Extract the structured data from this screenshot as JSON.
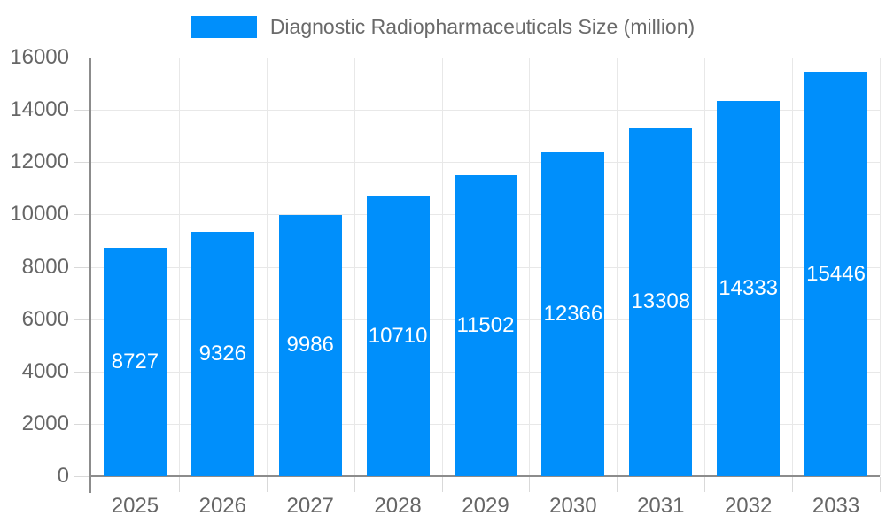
{
  "chart_data": {
    "type": "bar",
    "title": "Diagnostic Radiopharmaceuticals Size (million)",
    "categories": [
      "2025",
      "2026",
      "2027",
      "2028",
      "2029",
      "2030",
      "2031",
      "2032",
      "2033"
    ],
    "values": [
      8727,
      9326,
      9986,
      10710,
      11502,
      12366,
      13308,
      14333,
      15446
    ],
    "series": [
      {
        "name": "Diagnostic Radiopharmaceuticals Size (million)",
        "values": [
          8727,
          9326,
          9986,
          10710,
          11502,
          12366,
          13308,
          14333,
          15446
        ]
      }
    ],
    "xlabel": "",
    "ylabel": "",
    "ylim": [
      0,
      16000
    ],
    "yticks": [
      0,
      2000,
      4000,
      6000,
      8000,
      10000,
      12000,
      14000,
      16000
    ],
    "grid": true,
    "legend_position": "top",
    "value_labels_inside_bars": true,
    "colors": {
      "bar": "#008FFB",
      "value_label": "#ffffff",
      "axis_text": "#666666",
      "legend_text": "#6a6a6a",
      "gridline": "#e8e8e8",
      "tick": "#d9d9d9",
      "axis_line": "#8c8c8c",
      "background": "#ffffff"
    }
  }
}
